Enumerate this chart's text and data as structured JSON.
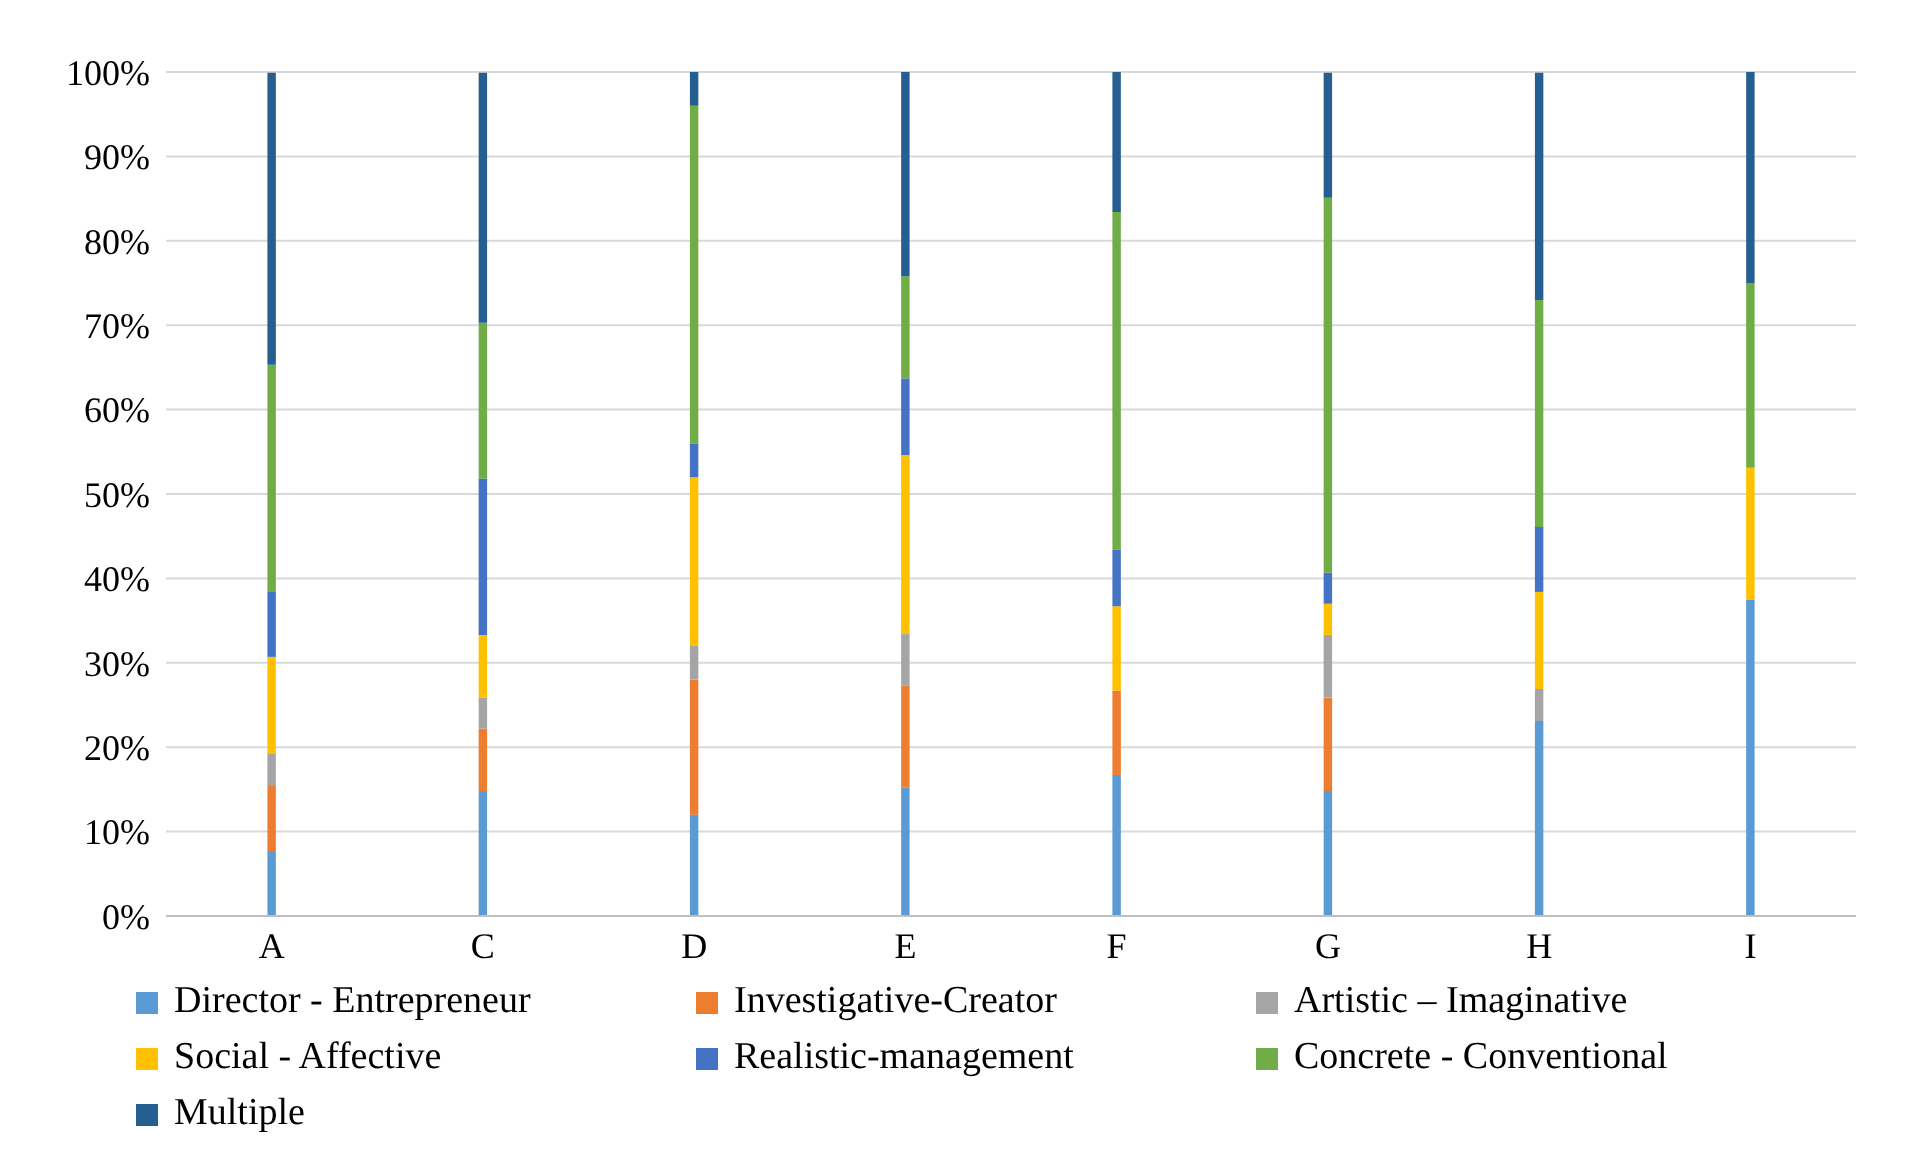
{
  "chart_data": {
    "type": "bar",
    "stacked": true,
    "categories": [
      "A",
      "C",
      "D",
      "E",
      "F",
      "G",
      "H",
      "I"
    ],
    "series": [
      {
        "name": "Director - Entrepreneur",
        "color": "#5b9bd5",
        "values": [
          7.7,
          14.8,
          12,
          15.2,
          16.7,
          14.8,
          23.1,
          37.5
        ]
      },
      {
        "name": "Investigative-Creator",
        "color": "#ed7d31",
        "values": [
          7.7,
          7.4,
          16,
          12.1,
          10,
          11.1,
          0,
          0
        ]
      },
      {
        "name": "Artistic – Imaginative",
        "color": "#a5a5a5",
        "values": [
          3.8,
          3.7,
          4,
          6.1,
          0,
          7.4,
          3.8,
          0
        ]
      },
      {
        "name": "Social - Affective",
        "color": "#ffc000",
        "values": [
          11.5,
          7.4,
          20,
          21.2,
          10,
          3.7,
          11.5,
          15.6
        ]
      },
      {
        "name": "Realistic-management",
        "color": "#4472c4",
        "values": [
          7.7,
          18.5,
          4,
          9.1,
          6.7,
          3.7,
          7.7,
          0
        ]
      },
      {
        "name": "Concrete - Conventional",
        "color": "#70ad47",
        "values": [
          26.9,
          18.5,
          40,
          12.1,
          40,
          44.4,
          26.9,
          21.9
        ]
      },
      {
        "name": "Multiple",
        "color": "#255e91",
        "values": [
          34.6,
          29.6,
          4,
          24.2,
          16.7,
          14.8,
          26.9,
          25
        ]
      }
    ],
    "ylim": [
      0,
      100
    ],
    "yticks": [
      {
        "value": 0,
        "label": "0%"
      },
      {
        "value": 10,
        "label": "10%"
      },
      {
        "value": 20,
        "label": "20%"
      },
      {
        "value": 30,
        "label": "30%"
      },
      {
        "value": 40,
        "label": "40%"
      },
      {
        "value": 50,
        "label": "50%"
      },
      {
        "value": 60,
        "label": "60%"
      },
      {
        "value": 70,
        "label": "70%"
      },
      {
        "value": 80,
        "label": "80%"
      },
      {
        "value": 90,
        "label": "90%"
      },
      {
        "value": 100,
        "label": "100%"
      }
    ],
    "grid": "y",
    "legend": "bottom"
  }
}
